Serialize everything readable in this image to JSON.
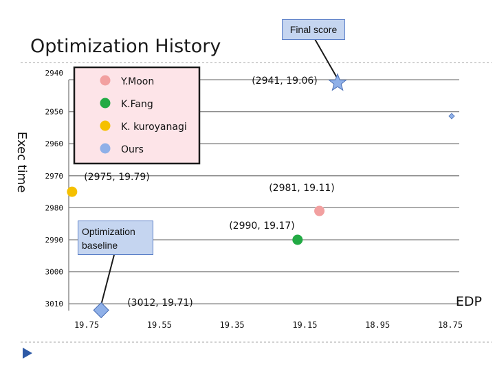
{
  "title": "Optimization History",
  "chart_data": {
    "type": "scatter",
    "title": "Optimization History",
    "xlabel": "EDP",
    "ylabel": "Exec time",
    "x_ticks": [
      "19.75",
      "19.55",
      "19.35",
      "19.15",
      "18.95",
      "18.75"
    ],
    "y_ticks": [
      "2940",
      "2950",
      "2960",
      "2970",
      "2980",
      "2990",
      "3000",
      "3010"
    ],
    "x_reversed": true,
    "y_reversed": true,
    "xlim": [
      19.75,
      18.75
    ],
    "ylim": [
      2940,
      3010
    ],
    "grid": "horizontal",
    "legend_position": "top-left",
    "series": [
      {
        "name": "Y.Moon",
        "color": "#f2a0a0",
        "points": [
          {
            "x": 19.11,
            "y": 2981,
            "label": "(2981, 19.11)"
          }
        ]
      },
      {
        "name": "K.Fang",
        "color": "#22aa44",
        "points": [
          {
            "x": 19.17,
            "y": 2990,
            "label": "(2990, 19.17)"
          }
        ]
      },
      {
        "name": "K. kuroyanagi",
        "color": "#f5c000",
        "points": [
          {
            "x": 19.79,
            "y": 2975,
            "label": "(2975, 19.79)"
          }
        ]
      },
      {
        "name": "Ours",
        "color": "#8fb0e8",
        "points": [
          {
            "x": 19.71,
            "y": 3012,
            "label": "(3012, 19.71)",
            "marker": "diamond"
          },
          {
            "x": 19.06,
            "y": 2941,
            "label": "(2941, 19.06)",
            "marker": "star"
          }
        ]
      }
    ],
    "annotations": [
      {
        "text": "Final score",
        "target_series": "Ours",
        "target_index": 1
      },
      {
        "text": "Optimization baseline",
        "target_series": "Ours",
        "target_index": 0
      }
    ]
  }
}
